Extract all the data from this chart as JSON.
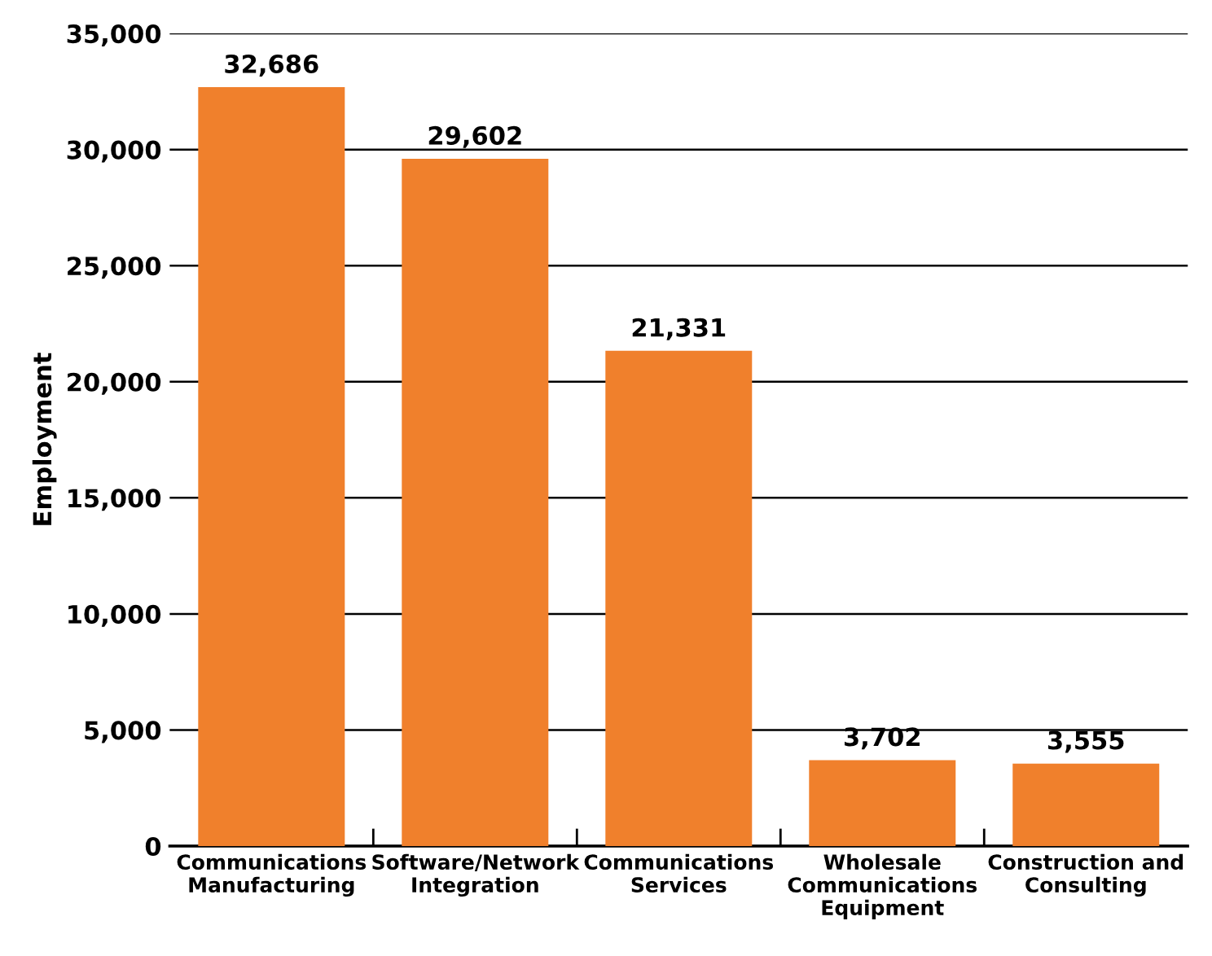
{
  "chart_data": {
    "type": "bar",
    "categories": [
      "Communications\nManufacturing",
      "Software/Network\nIntegration",
      "Communications\nServices",
      "Wholesale\nCommunications\nEquipment",
      "Construction and\nConsulting"
    ],
    "values": [
      32686,
      29602,
      21331,
      3702,
      3555
    ],
    "value_labels": [
      "32,686",
      "29,602",
      "21,331",
      "3,702",
      "3,555"
    ],
    "color": "#f0802c",
    "ylabel": "Employment",
    "ylim": [
      0,
      35000
    ],
    "yticks": [
      {
        "value": 0,
        "label": "0"
      },
      {
        "value": 5000,
        "label": "5,000"
      },
      {
        "value": 10000,
        "label": "10,000"
      },
      {
        "value": 15000,
        "label": "15,000"
      },
      {
        "value": 20000,
        "label": "20,000"
      },
      {
        "value": 25000,
        "label": "25,000"
      },
      {
        "value": 30000,
        "label": "30,000"
      },
      {
        "value": 35000,
        "label": "35,000"
      }
    ],
    "grid": "y",
    "legend": false
  }
}
